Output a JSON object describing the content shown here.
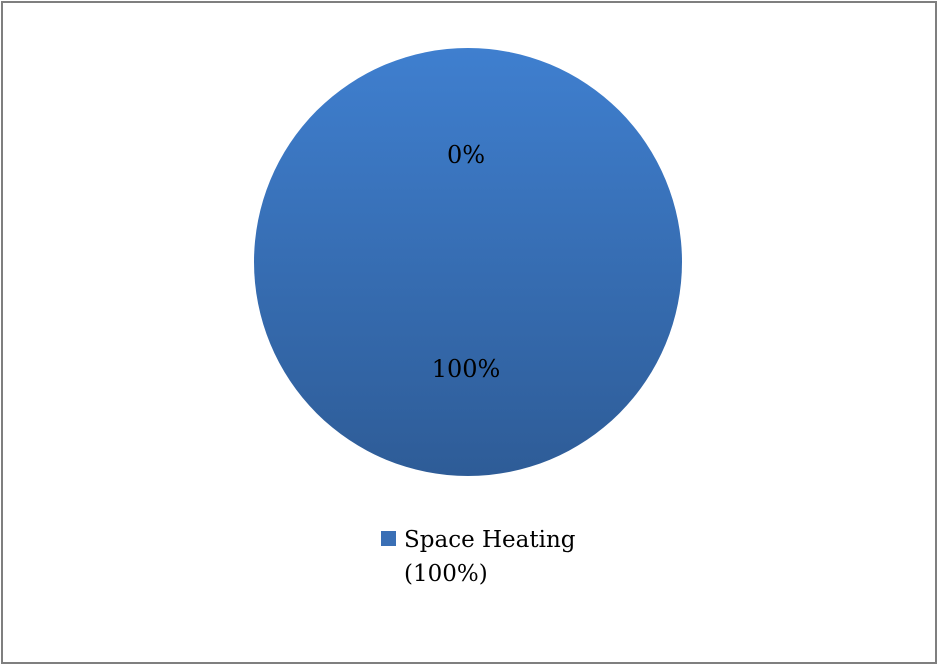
{
  "chart_data": {
    "type": "pie",
    "slices": [
      {
        "name": "Space Heating",
        "value": 100,
        "label": "100%",
        "legend_label": "Space Heating (100%)"
      },
      {
        "name": "",
        "value": 0,
        "label": "0%"
      }
    ],
    "legend_placement": "bottom",
    "colors": {
      "slice_light": "#3f7fcf",
      "slice_dark": "#2e5c97",
      "frame": "#7f7f7f",
      "swatch": "#3a6fb5"
    }
  }
}
